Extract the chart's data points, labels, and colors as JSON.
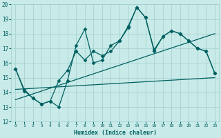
{
  "xlabel": "Humidex (Indice chaleur)",
  "ylabel": "",
  "xlim": [
    -0.5,
    23.5
  ],
  "ylim": [
    12,
    20
  ],
  "xticks": [
    0,
    1,
    2,
    3,
    4,
    5,
    6,
    7,
    8,
    9,
    10,
    11,
    12,
    13,
    14,
    15,
    16,
    17,
    18,
    19,
    20,
    21,
    22,
    23
  ],
  "yticks": [
    12,
    13,
    14,
    15,
    16,
    17,
    18,
    19,
    20
  ],
  "bg_color": "#c8eae8",
  "grid_color": "#a0d0ce",
  "line_color": "#006060",
  "series1_x": [
    0,
    1,
    2,
    3,
    4,
    5,
    6,
    7,
    8,
    9,
    10,
    11,
    12,
    13,
    14,
    15,
    16,
    17,
    18,
    19,
    20,
    21,
    22,
    23
  ],
  "series1_y": [
    15.6,
    14.1,
    13.6,
    13.2,
    13.4,
    13.0,
    14.8,
    17.2,
    18.3,
    16.0,
    16.2,
    17.2,
    17.5,
    18.5,
    19.8,
    19.1,
    16.8,
    17.8,
    18.2,
    18.0,
    17.5,
    17.0,
    16.8,
    15.3
  ],
  "series2_x": [
    0,
    1,
    2,
    3,
    4,
    5,
    6,
    7,
    8,
    9,
    10,
    11,
    12,
    13,
    14,
    15,
    16,
    17,
    18,
    19,
    20,
    21,
    22,
    23
  ],
  "series2_y": [
    15.6,
    14.2,
    13.6,
    13.2,
    13.4,
    14.8,
    15.5,
    16.8,
    16.2,
    16.8,
    16.5,
    16.8,
    17.5,
    18.4,
    19.8,
    19.1,
    16.9,
    17.8,
    18.2,
    18.0,
    17.5,
    17.0,
    16.8,
    15.3
  ],
  "series3_x": [
    0,
    23
  ],
  "series3_y": [
    13.5,
    18.0
  ],
  "series4_x": [
    0,
    23
  ],
  "series4_y": [
    14.2,
    15.0
  ],
  "marker": "D",
  "markersize": 2.5,
  "linewidth": 0.9
}
